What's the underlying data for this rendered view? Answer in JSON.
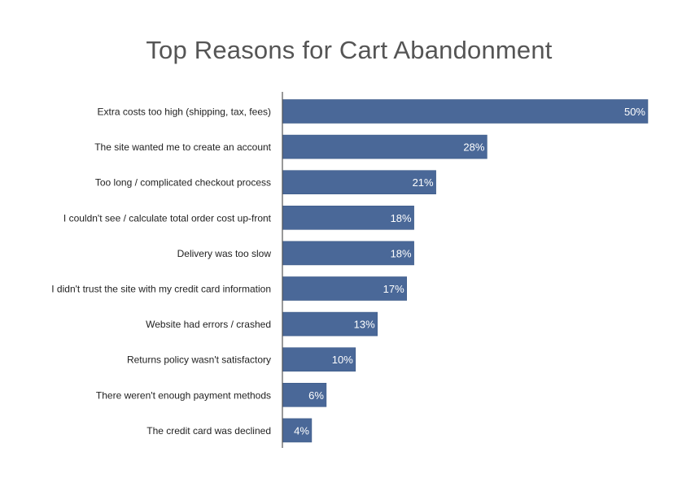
{
  "chart_data": {
    "type": "bar",
    "orientation": "horizontal",
    "title": "Top Reasons for Cart Abandonment",
    "categories": [
      "Extra costs too high (shipping, tax, fees)",
      "The site wanted me to create an account",
      "Too long / complicated checkout process",
      "I couldn't see / calculate total order cost up-front",
      "Delivery was too slow",
      "I didn't trust the site with my credit card information",
      "Website had errors / crashed",
      "Returns policy wasn't satisfactory",
      "There weren't enough payment methods",
      "The credit card was declined"
    ],
    "values": [
      50,
      28,
      21,
      18,
      18,
      17,
      13,
      10,
      6,
      4
    ],
    "value_labels": [
      "50%",
      "28%",
      "21%",
      "18%",
      "18%",
      "17%",
      "13%",
      "10%",
      "6%",
      "4%"
    ],
    "unit": "%",
    "xlim": [
      0,
      50
    ],
    "grid": false,
    "legend": "none",
    "colors": {
      "bar": "#4a6898",
      "bar_edge": "#3d5a88",
      "label_text": "#222222",
      "value_text": "#ffffff",
      "title_text": "#555555",
      "axis": "#555555"
    }
  }
}
